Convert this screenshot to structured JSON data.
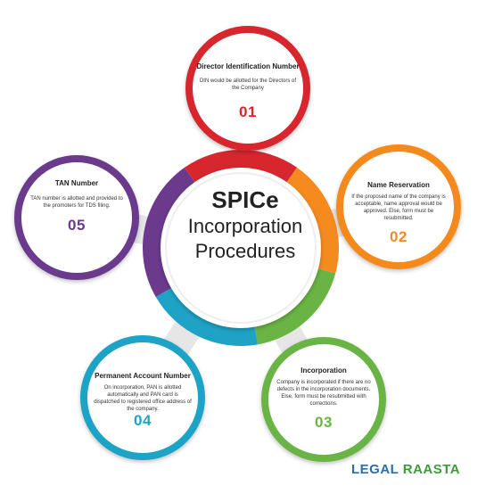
{
  "colors": {
    "red": "#d7262e",
    "orange": "#f58a1f",
    "green": "#6ab445",
    "teal": "#1ea3c6",
    "purple": "#6b3a8c",
    "gray": "#e6e6e6",
    "brand_blue": "#2a6fa8",
    "brand_green": "#3e9b3a"
  },
  "center": {
    "line1": "SPICe",
    "line2": "Incorporation",
    "line3": "Procedures"
  },
  "nodes": [
    {
      "number": "01",
      "title": "Director Identification Number",
      "description": "DIN would be allotted for the Directors of the Company",
      "color": "#d7262e"
    },
    {
      "number": "02",
      "title": "Name Reservation",
      "description": "If the proposed name of the company is acceptable, name approval would be approved. Else, form must be resubmitted.",
      "color": "#f58a1f"
    },
    {
      "number": "03",
      "title": "Incorporation",
      "description": "Company is incorporated if there are no defects in the incorporation documents. Else, form must be resubmitted with corrections.",
      "color": "#6ab445"
    },
    {
      "number": "04",
      "title": "Permanent Account Number",
      "description": "On incorporation, PAN is allotted automatically and PAN card is dispatched to registered office address of the company.",
      "color": "#1ea3c6"
    },
    {
      "number": "05",
      "title": "TAN Number",
      "description": "TAN number is allotted and provided to the promoters for TDS filing.",
      "color": "#6b3a8c"
    }
  ],
  "brand": {
    "part1": "LEGAL",
    "part2": "RAASTA"
  }
}
